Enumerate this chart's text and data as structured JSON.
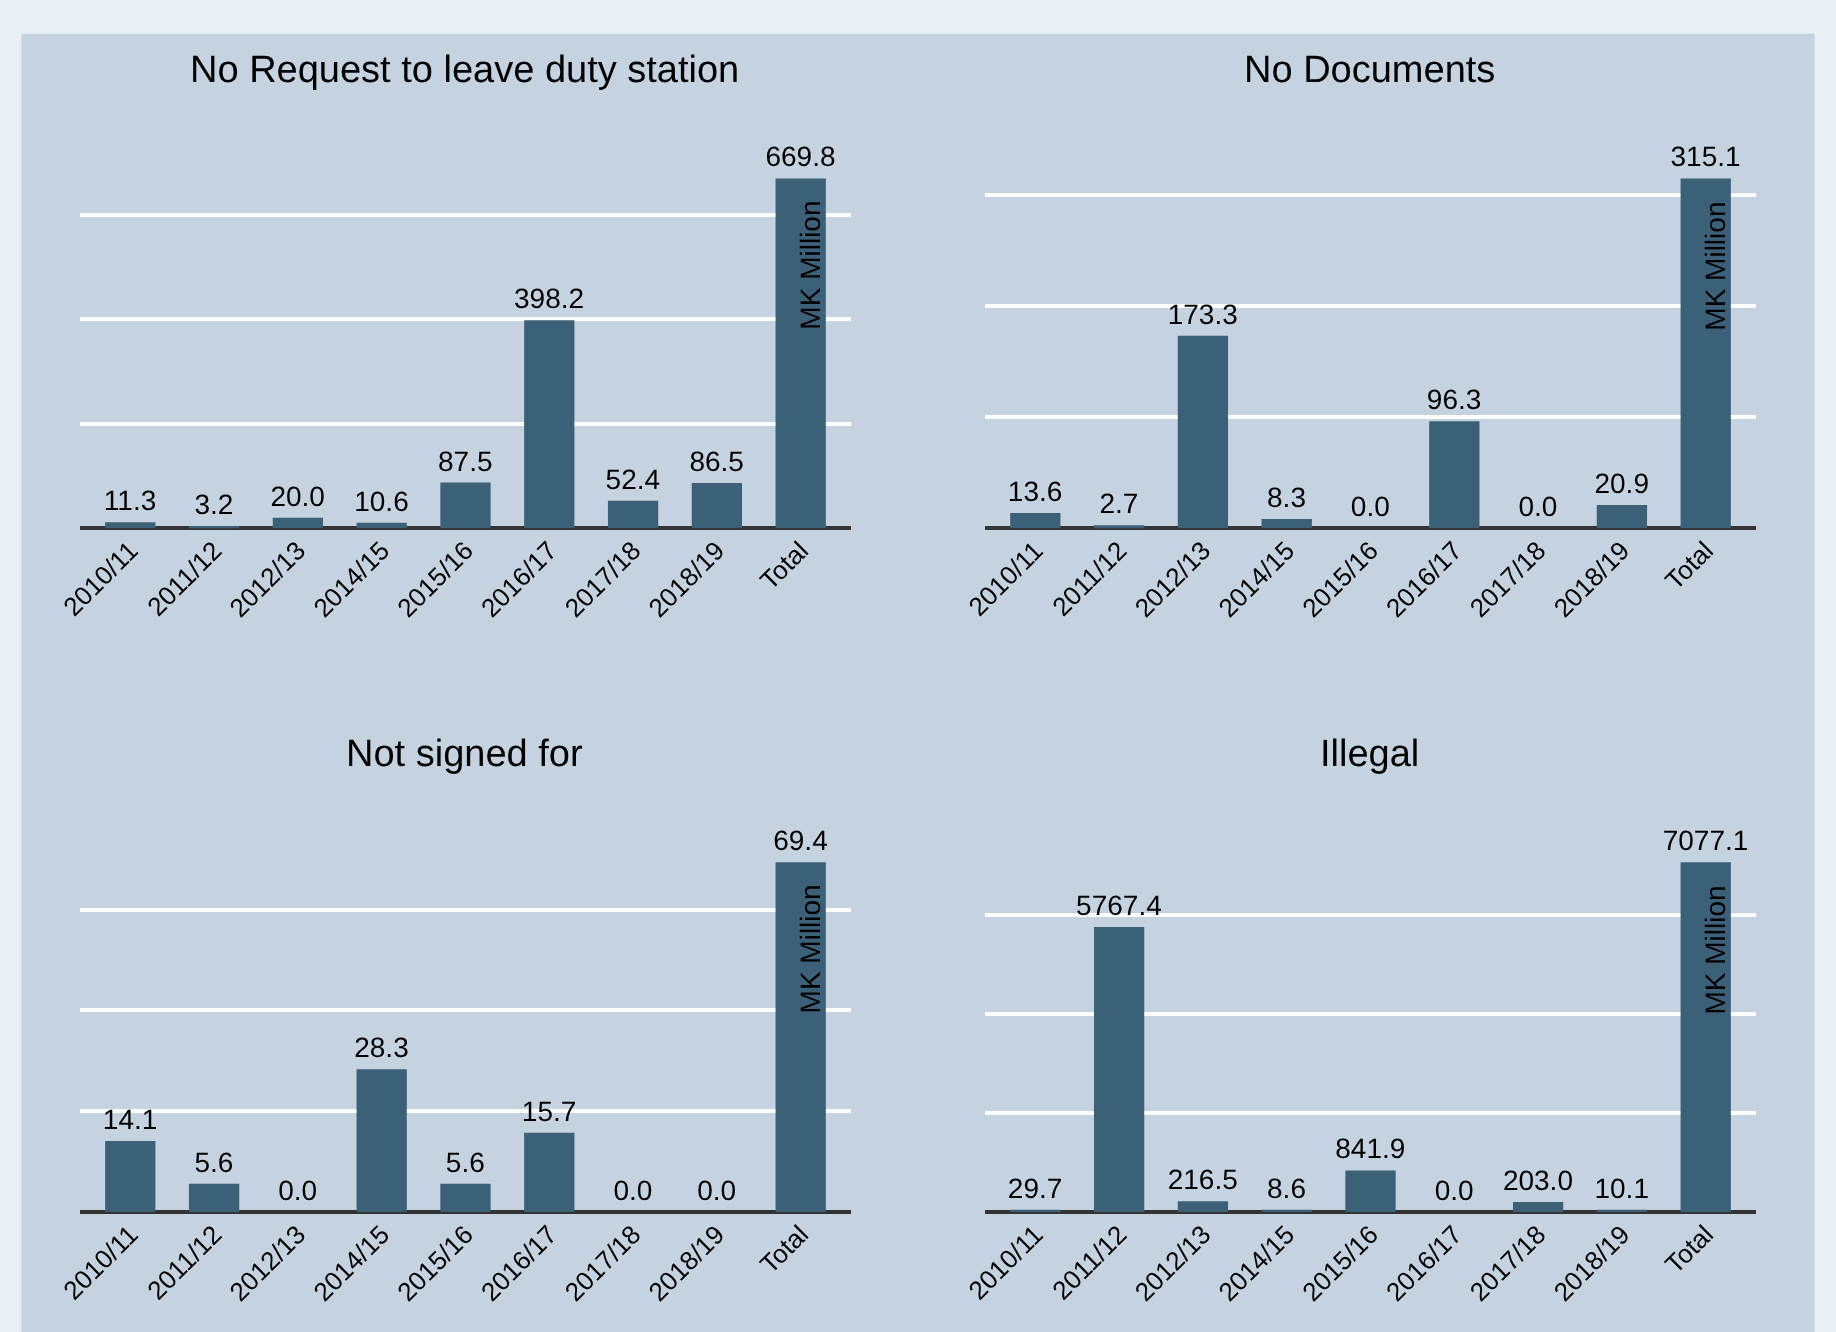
{
  "chart_data": [
    {
      "type": "bar",
      "title": "No Request to leave duty station",
      "categories": [
        "2010/11",
        "2011/12",
        "2012/13",
        "2014/15",
        "2015/16",
        "2016/17",
        "2017/18",
        "2018/19",
        "Total"
      ],
      "values": [
        11.3,
        3.2,
        20.0,
        10.6,
        87.5,
        398.2,
        52.4,
        86.5,
        669.8
      ],
      "value_labels": [
        "11.3",
        "3.2",
        "20.0",
        "10.6",
        "87.5",
        "398.2",
        "52.4",
        "86.5",
        "669.8"
      ],
      "color": "#3d6079",
      "yticks": [
        {
          "value": 0,
          "label": null
        },
        {
          "value": 200,
          "label": null
        },
        {
          "value": 400,
          "label": null
        },
        {
          "value": 600,
          "label": null
        }
      ],
      "grid": "y",
      "tick_labels": "x",
      "annotations": [
        "MK Million"
      ]
    },
    {
      "type": "bar",
      "title": "No Documents",
      "categories": [
        "2010/11",
        "2011/12",
        "2012/13",
        "2014/15",
        "2015/16",
        "2016/17",
        "2017/18",
        "2018/19",
        "Total"
      ],
      "values": [
        13.6,
        2.7,
        173.3,
        8.3,
        0.0,
        96.3,
        0.0,
        20.9,
        315.1
      ],
      "value_labels": [
        "13.6",
        "2.7",
        "173.3",
        "8.3",
        "0.0",
        "96.3",
        "0.0",
        "20.9",
        "315.1"
      ],
      "color": "#3d6079",
      "yticks": [
        {
          "value": 0,
          "label": null
        },
        {
          "value": 100,
          "label": null
        },
        {
          "value": 200,
          "label": null
        },
        {
          "value": 300,
          "label": null
        }
      ],
      "grid": "y",
      "tick_labels": "x",
      "annotations": [
        "MK Million"
      ]
    },
    {
      "type": "bar",
      "title": "Not signed for",
      "categories": [
        "2010/11",
        "2011/12",
        "2012/13",
        "2014/15",
        "2015/16",
        "2016/17",
        "2017/18",
        "2018/19",
        "Total"
      ],
      "values": [
        14.1,
        5.6,
        0.0,
        28.3,
        5.6,
        15.7,
        0.0,
        0.0,
        69.4
      ],
      "value_labels": [
        "14.1",
        "5.6",
        "0.0",
        "28.3",
        "5.6",
        "15.7",
        "0.0",
        "0.0",
        "69.4"
      ],
      "color": "#3d6079",
      "yticks": [
        {
          "value": 0,
          "label": null
        },
        {
          "value": 20,
          "label": null
        },
        {
          "value": 40,
          "label": null
        },
        {
          "value": 60,
          "label": null
        }
      ],
      "grid": "y",
      "tick_labels": "x",
      "annotations": [
        "MK Million"
      ]
    },
    {
      "type": "bar",
      "title": "Illegal",
      "categories": [
        "2010/11",
        "2011/12",
        "2012/13",
        "2014/15",
        "2015/16",
        "2016/17",
        "2017/18",
        "2018/19",
        "Total"
      ],
      "values": [
        29.7,
        5767.4,
        216.5,
        8.6,
        841.9,
        0.0,
        203.0,
        10.1,
        7077.1
      ],
      "value_labels": [
        "29.7",
        "5767.4",
        "216.5",
        "8.6",
        "841.9",
        "0.0",
        "203.0",
        "10.1",
        "7077.1"
      ],
      "color": "#3d6079",
      "yticks": [
        {
          "value": 0,
          "label": null
        },
        {
          "value": 2000,
          "label": null
        },
        {
          "value": 4000,
          "label": null
        },
        {
          "value": 6000,
          "label": null
        }
      ],
      "grid": "y",
      "tick_labels": "x",
      "annotations": [
        "MK Million"
      ]
    }
  ]
}
